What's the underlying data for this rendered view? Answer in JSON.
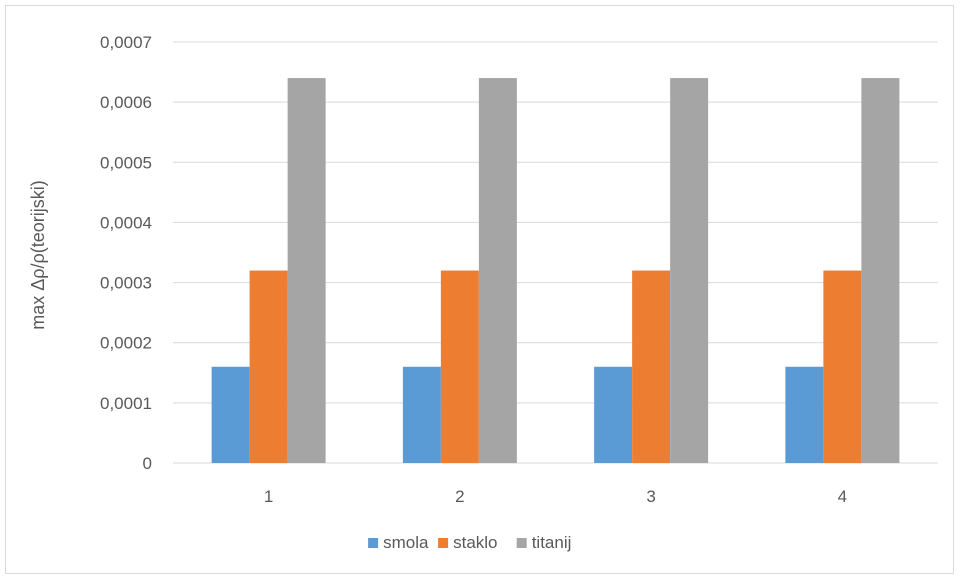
{
  "chart_data": {
    "type": "bar",
    "title": "",
    "xlabel": "",
    "ylabel": "max Δρ/ρ(teorijski)",
    "categories": [
      "1",
      "2",
      "3",
      "4"
    ],
    "series": [
      {
        "name": "smola",
        "color": "#5b9bd5",
        "values": [
          0.00016,
          0.00016,
          0.00016,
          0.00016
        ]
      },
      {
        "name": "staklo",
        "color": "#ed7d31",
        "values": [
          0.00032,
          0.00032,
          0.00032,
          0.00032
        ]
      },
      {
        "name": "titanij",
        "color": "#a5a5a5",
        "values": [
          0.00064,
          0.00064,
          0.00064,
          0.00064
        ]
      }
    ],
    "ylim": [
      0,
      0.0007
    ],
    "yticks": [
      "0",
      "0,0001",
      "0,0002",
      "0,0003",
      "0,0004",
      "0,0005",
      "0,0006",
      "0,0007"
    ],
    "grid": true,
    "legend_position": "bottom"
  }
}
